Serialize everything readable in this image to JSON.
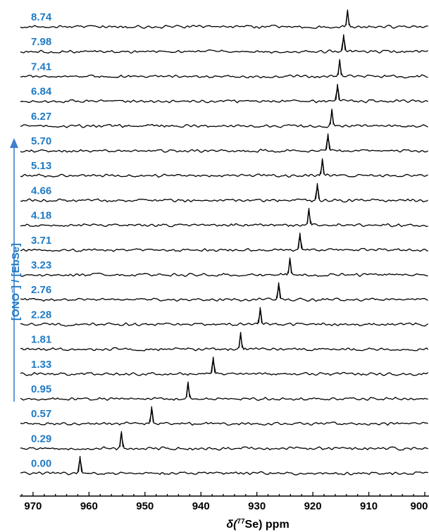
{
  "chart_data": {
    "type": "line",
    "xlabel_parts": {
      "symbol": "δ(",
      "superscript": "77",
      "rest": "Se) ppm"
    },
    "ylabel_parts": {
      "main": "[ONO",
      "superscript": "−",
      "rest": "] / [EbSe]"
    },
    "xlim": [
      972,
      900
    ],
    "x_reversed": true,
    "x_ticks": [
      970,
      960,
      950,
      940,
      930,
      920,
      910,
      900
    ],
    "stacked": true,
    "series": [
      {
        "ratio": "8.74",
        "peak_ppm": 913.8
      },
      {
        "ratio": "7.98",
        "peak_ppm": 914.5
      },
      {
        "ratio": "7.41",
        "peak_ppm": 915.2
      },
      {
        "ratio": "6.84",
        "peak_ppm": 915.6
      },
      {
        "ratio": "6.27",
        "peak_ppm": 916.6
      },
      {
        "ratio": "5.70",
        "peak_ppm": 917.3
      },
      {
        "ratio": "5.13",
        "peak_ppm": 918.3
      },
      {
        "ratio": "4.66",
        "peak_ppm": 919.2
      },
      {
        "ratio": "4.18",
        "peak_ppm": 920.7
      },
      {
        "ratio": "3.71",
        "peak_ppm": 922.3
      },
      {
        "ratio": "3.23",
        "peak_ppm": 924.1
      },
      {
        "ratio": "2.76",
        "peak_ppm": 926.1
      },
      {
        "ratio": "2.28",
        "peak_ppm": 929.4
      },
      {
        "ratio": "1.81",
        "peak_ppm": 932.9
      },
      {
        "ratio": "1.33",
        "peak_ppm": 937.8
      },
      {
        "ratio": "0.95",
        "peak_ppm": 942.3
      },
      {
        "ratio": "0.57",
        "peak_ppm": 948.8
      },
      {
        "ratio": "0.29",
        "peak_ppm": 954.2
      },
      {
        "ratio": "0.00",
        "peak_ppm": 961.6
      }
    ],
    "arrow_direction": "up",
    "colors": {
      "ratio_labels": "#1f7ac4",
      "traces": "#000000",
      "axis": "#000000"
    }
  }
}
